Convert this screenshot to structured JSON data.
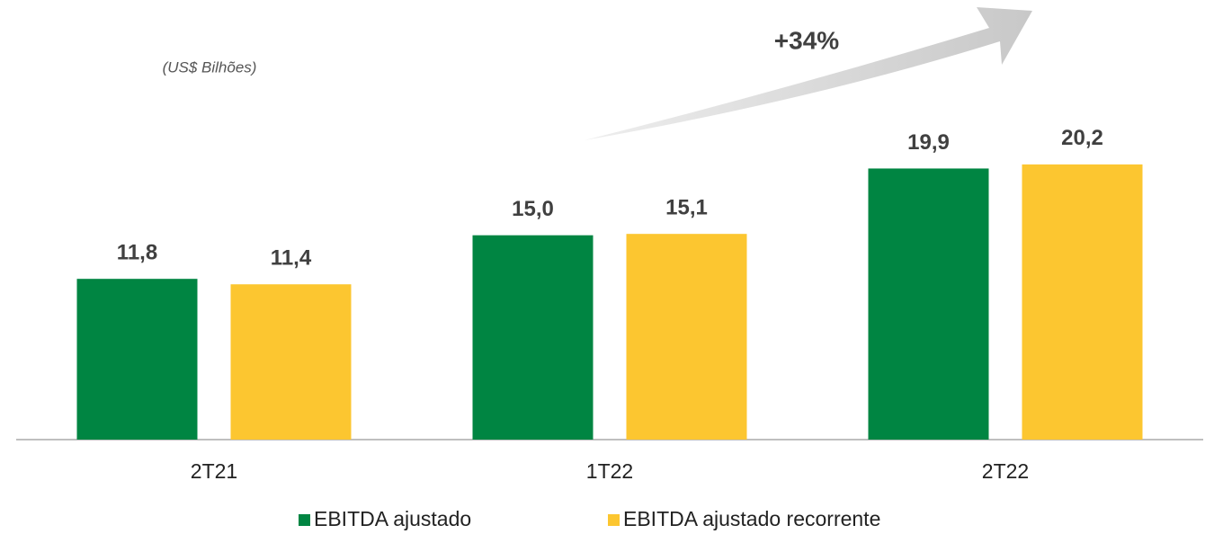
{
  "chart_data": {
    "type": "bar",
    "subtitle": "(US$ Bilhões)",
    "annotation": "+34%",
    "categories": [
      "2T21",
      "1T22",
      "2T22"
    ],
    "series": [
      {
        "name": "EBITDA ajustado",
        "color": "#008542",
        "values": [
          11.8,
          15.0,
          19.9
        ],
        "value_labels": [
          "11,8",
          "15,0",
          "19,9"
        ]
      },
      {
        "name": "EBITDA ajustado recorrente",
        "color": "#fcc630",
        "values": [
          11.4,
          15.1,
          20.2
        ],
        "value_labels": [
          "11,4",
          "15,1",
          "20,2"
        ]
      }
    ],
    "ylim": [
      0,
      26
    ]
  }
}
